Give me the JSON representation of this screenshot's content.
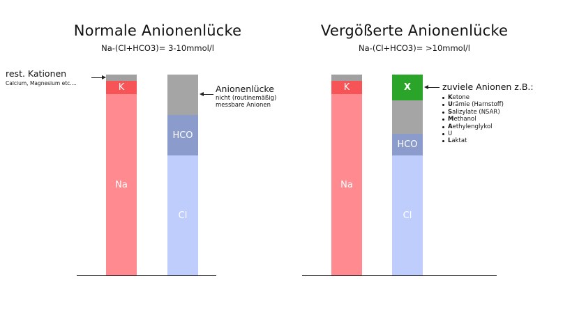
{
  "colors": {
    "na": "#ff8a8f",
    "k": "#f75457",
    "rest": "#a0a0a0",
    "gap": "#a5a5a5",
    "hco": "#8b9ccc",
    "cl": "#bfcdfc",
    "x": "#2aa52a"
  },
  "left": {
    "title": "Normale Anionenlücke",
    "subtitle": "Na-(Cl+HCO3)= 3-10mmol/l",
    "cation_col": {
      "k": "K",
      "na": "Na"
    },
    "anion_col": {
      "hco": "HCO",
      "cl": "Cl"
    },
    "rest_label": "rest. Kationen",
    "rest_sub": "Calcium, Magnesium etc....",
    "gap_label": "Anionenlücke",
    "gap_sub1": "nicht (routinemäßig)",
    "gap_sub2": "messbare Anionen"
  },
  "right": {
    "title": "Vergößerte Anionenlücke",
    "subtitle": "Na-(Cl+HCO3)= >10mmol/l",
    "cation_col": {
      "k": "K",
      "na": "Na"
    },
    "anion_col": {
      "x": "X",
      "hco": "HCO",
      "cl": "Cl"
    },
    "anion_note": "zuviele Anionen z.B.:",
    "anion_list": [
      {
        "initial": "K",
        "rest": "etone"
      },
      {
        "initial": "U",
        "rest": "rämie (Harnstoff)"
      },
      {
        "initial": "S",
        "rest": "alizylate (NSAR)"
      },
      {
        "initial": "M",
        "rest": "ethanol"
      },
      {
        "initial": "A",
        "rest": "ethylenglykol"
      },
      {
        "initial": "",
        "rest": "U"
      },
      {
        "initial": "L",
        "rest": "aktat"
      }
    ]
  }
}
